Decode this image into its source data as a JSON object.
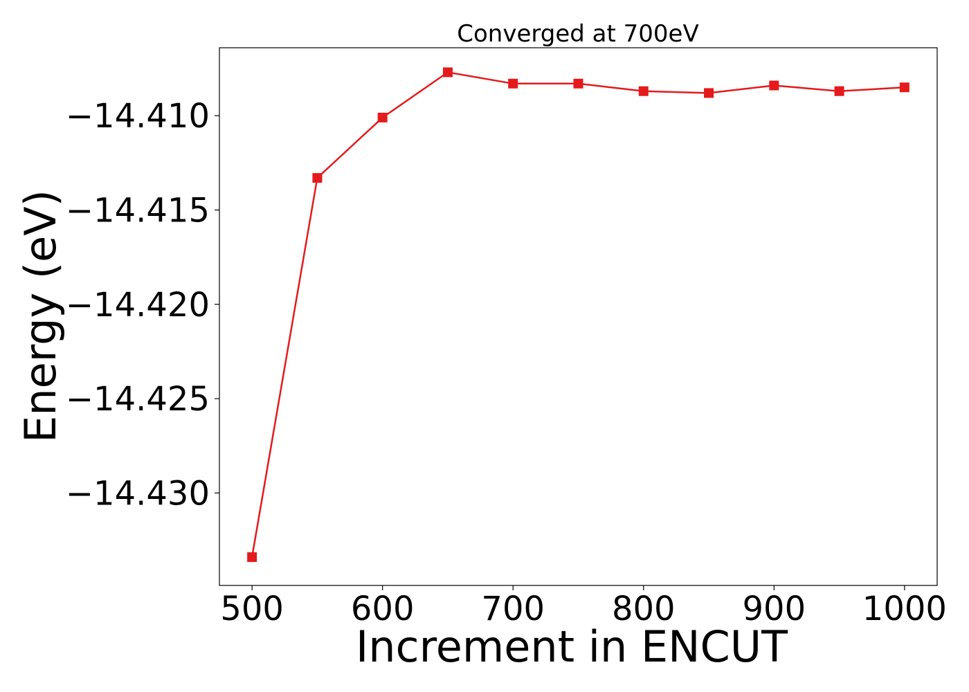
{
  "colors": {
    "series": "#e41a1c",
    "axis": "#000000",
    "background": "#ffffff"
  },
  "chart_data": {
    "type": "line",
    "title": "Converged at 700eV",
    "xlabel": "Increment in ENCUT",
    "ylabel": "Energy (eV)",
    "xlim": [
      475,
      1025
    ],
    "ylim": [
      -14.4349,
      -14.4064
    ],
    "grid": false,
    "marker": "square",
    "x_ticks": [
      500,
      600,
      700,
      800,
      900,
      1000
    ],
    "x_tick_labels": [
      "500",
      "600",
      "700",
      "800",
      "900",
      "1000"
    ],
    "y_ticks": [
      -14.41,
      -14.415,
      -14.42,
      -14.425,
      -14.43
    ],
    "y_tick_labels": [
      "−14.410",
      "−14.415",
      "−14.420",
      "−14.425",
      "−14.430"
    ],
    "series": [
      {
        "x": [
          500,
          550,
          600,
          650,
          700,
          750,
          800,
          850,
          900,
          950,
          1000
        ],
        "values": [
          -14.4334,
          -14.4133,
          -14.4101,
          -14.4077,
          -14.4083,
          -14.4083,
          -14.4087,
          -14.4088,
          -14.4084,
          -14.4087,
          -14.4085
        ]
      }
    ]
  }
}
